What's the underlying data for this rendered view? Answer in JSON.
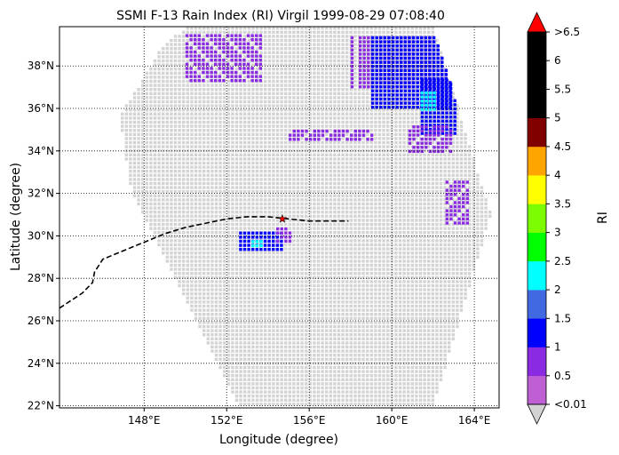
{
  "chart_data": {
    "type": "heatmap",
    "title": "SSMI F-13 Rain Index (RI) Virgil 1999-08-29 07:08:40",
    "xlabel": "Longitude (degree)",
    "ylabel": "Latitude (degree)",
    "xlim": [
      143.9,
      165.2
    ],
    "ylim": [
      21.9,
      39.85
    ],
    "grid": true,
    "grid_style": "dotted",
    "x_ticks": [
      148,
      152,
      156,
      160,
      164
    ],
    "x_tick_labels": [
      "148°E",
      "152°E",
      "156°E",
      "160°E",
      "164°E"
    ],
    "y_ticks": [
      22,
      24,
      26,
      28,
      30,
      32,
      34,
      36,
      38
    ],
    "y_tick_labels": [
      "22°N",
      "24°N",
      "26°N",
      "28°N",
      "30°N",
      "32°N",
      "34°N",
      "36°N",
      "38°N"
    ],
    "no_rain_color": "#d3d3d3",
    "swath": {
      "description_corners_lonlat": [
        [
          146.8,
          35.6
        ],
        [
          148.8,
          38.8
        ],
        [
          150.0,
          39.85
        ],
        [
          162.0,
          39.85
        ],
        [
          164.8,
          31.0
        ],
        [
          162.0,
          21.9
        ],
        [
          152.6,
          21.9
        ],
        [
          147.4,
          32.0
        ]
      ],
      "fill": "#d3d3d3"
    },
    "rain_regions": [
      {
        "level": "0.5-1",
        "lon_range": [
          150.0,
          153.6
        ],
        "lat_range": [
          37.2,
          39.5
        ]
      },
      {
        "level": "0.5-1",
        "lon_range": [
          155.0,
          159.0
        ],
        "lat_range": [
          34.6,
          35.0
        ]
      },
      {
        "level": "0.5-1",
        "lon_range": [
          158.0,
          162.8
        ],
        "lat_range": [
          37.0,
          39.4
        ]
      },
      {
        "level": "1-1.5",
        "lon_range": [
          159.0,
          162.8
        ],
        "lat_range": [
          36.0,
          39.4
        ]
      },
      {
        "level": "1-1.5",
        "lon_range": [
          161.4,
          163.0
        ],
        "lat_range": [
          34.8,
          37.4
        ]
      },
      {
        "level": "2-2.5",
        "lon_range": [
          161.4,
          162.0
        ],
        "lat_range": [
          36.0,
          36.8
        ]
      },
      {
        "level": "0.5-1",
        "lon_range": [
          160.8,
          162.8
        ],
        "lat_range": [
          34.0,
          35.2
        ]
      },
      {
        "level": "0.5-1",
        "lon_range": [
          162.6,
          163.6
        ],
        "lat_range": [
          30.6,
          32.6
        ]
      },
      {
        "level": "1-1.5",
        "lon_range": [
          152.6,
          154.6
        ],
        "lat_range": [
          29.3,
          30.2
        ]
      },
      {
        "level": "0.5-1",
        "lon_range": [
          154.4,
          155.0
        ],
        "lat_range": [
          29.8,
          30.4
        ]
      },
      {
        "level": "2-2.5",
        "lon_range": [
          153.2,
          153.6
        ],
        "lat_range": [
          29.5,
          29.8
        ]
      }
    ],
    "track": {
      "name": "",
      "style": "dashed",
      "color": "#000000",
      "lon": [
        143.9,
        145.0,
        145.5,
        145.6,
        146.0,
        147.0,
        148.0,
        149.0,
        150.0,
        151.0,
        152.0,
        153.0,
        154.0,
        155.0,
        156.0,
        157.0,
        157.9
      ],
      "lat": [
        26.6,
        27.3,
        27.8,
        28.3,
        28.9,
        29.3,
        29.7,
        30.1,
        30.4,
        30.6,
        30.8,
        30.9,
        30.9,
        30.8,
        30.7,
        30.7,
        30.7
      ]
    },
    "storm_center": {
      "lon": 154.7,
      "lat": 30.8,
      "marker": "star",
      "color": "#ff0000"
    },
    "colorbar": {
      "label": "RI",
      "tick_labels": [
        "<0.01",
        "0.5",
        "1",
        "1.5",
        "2",
        "2.5",
        "3",
        "3.5",
        "4",
        "4.5",
        "5",
        "5.5",
        "6",
        ">6.5"
      ],
      "colors": [
        "#bf5fd4",
        "#8a2be2",
        "#0000ff",
        "#4169e1",
        "#00ffff",
        "#00ff00",
        "#7cfc00",
        "#ffff00",
        "#ffa500",
        "#800000",
        "#000000",
        "#000000",
        "#000000"
      ],
      "under_color": "#d3d3d3",
      "over_color": "#ff0000",
      "level_colors": {
        "0.5-1": "#8a2be2",
        "0.01-0.5": "#bf5fd4",
        "1-1.5": "#0000ff",
        "2-2.5": "#00ffff"
      }
    }
  }
}
